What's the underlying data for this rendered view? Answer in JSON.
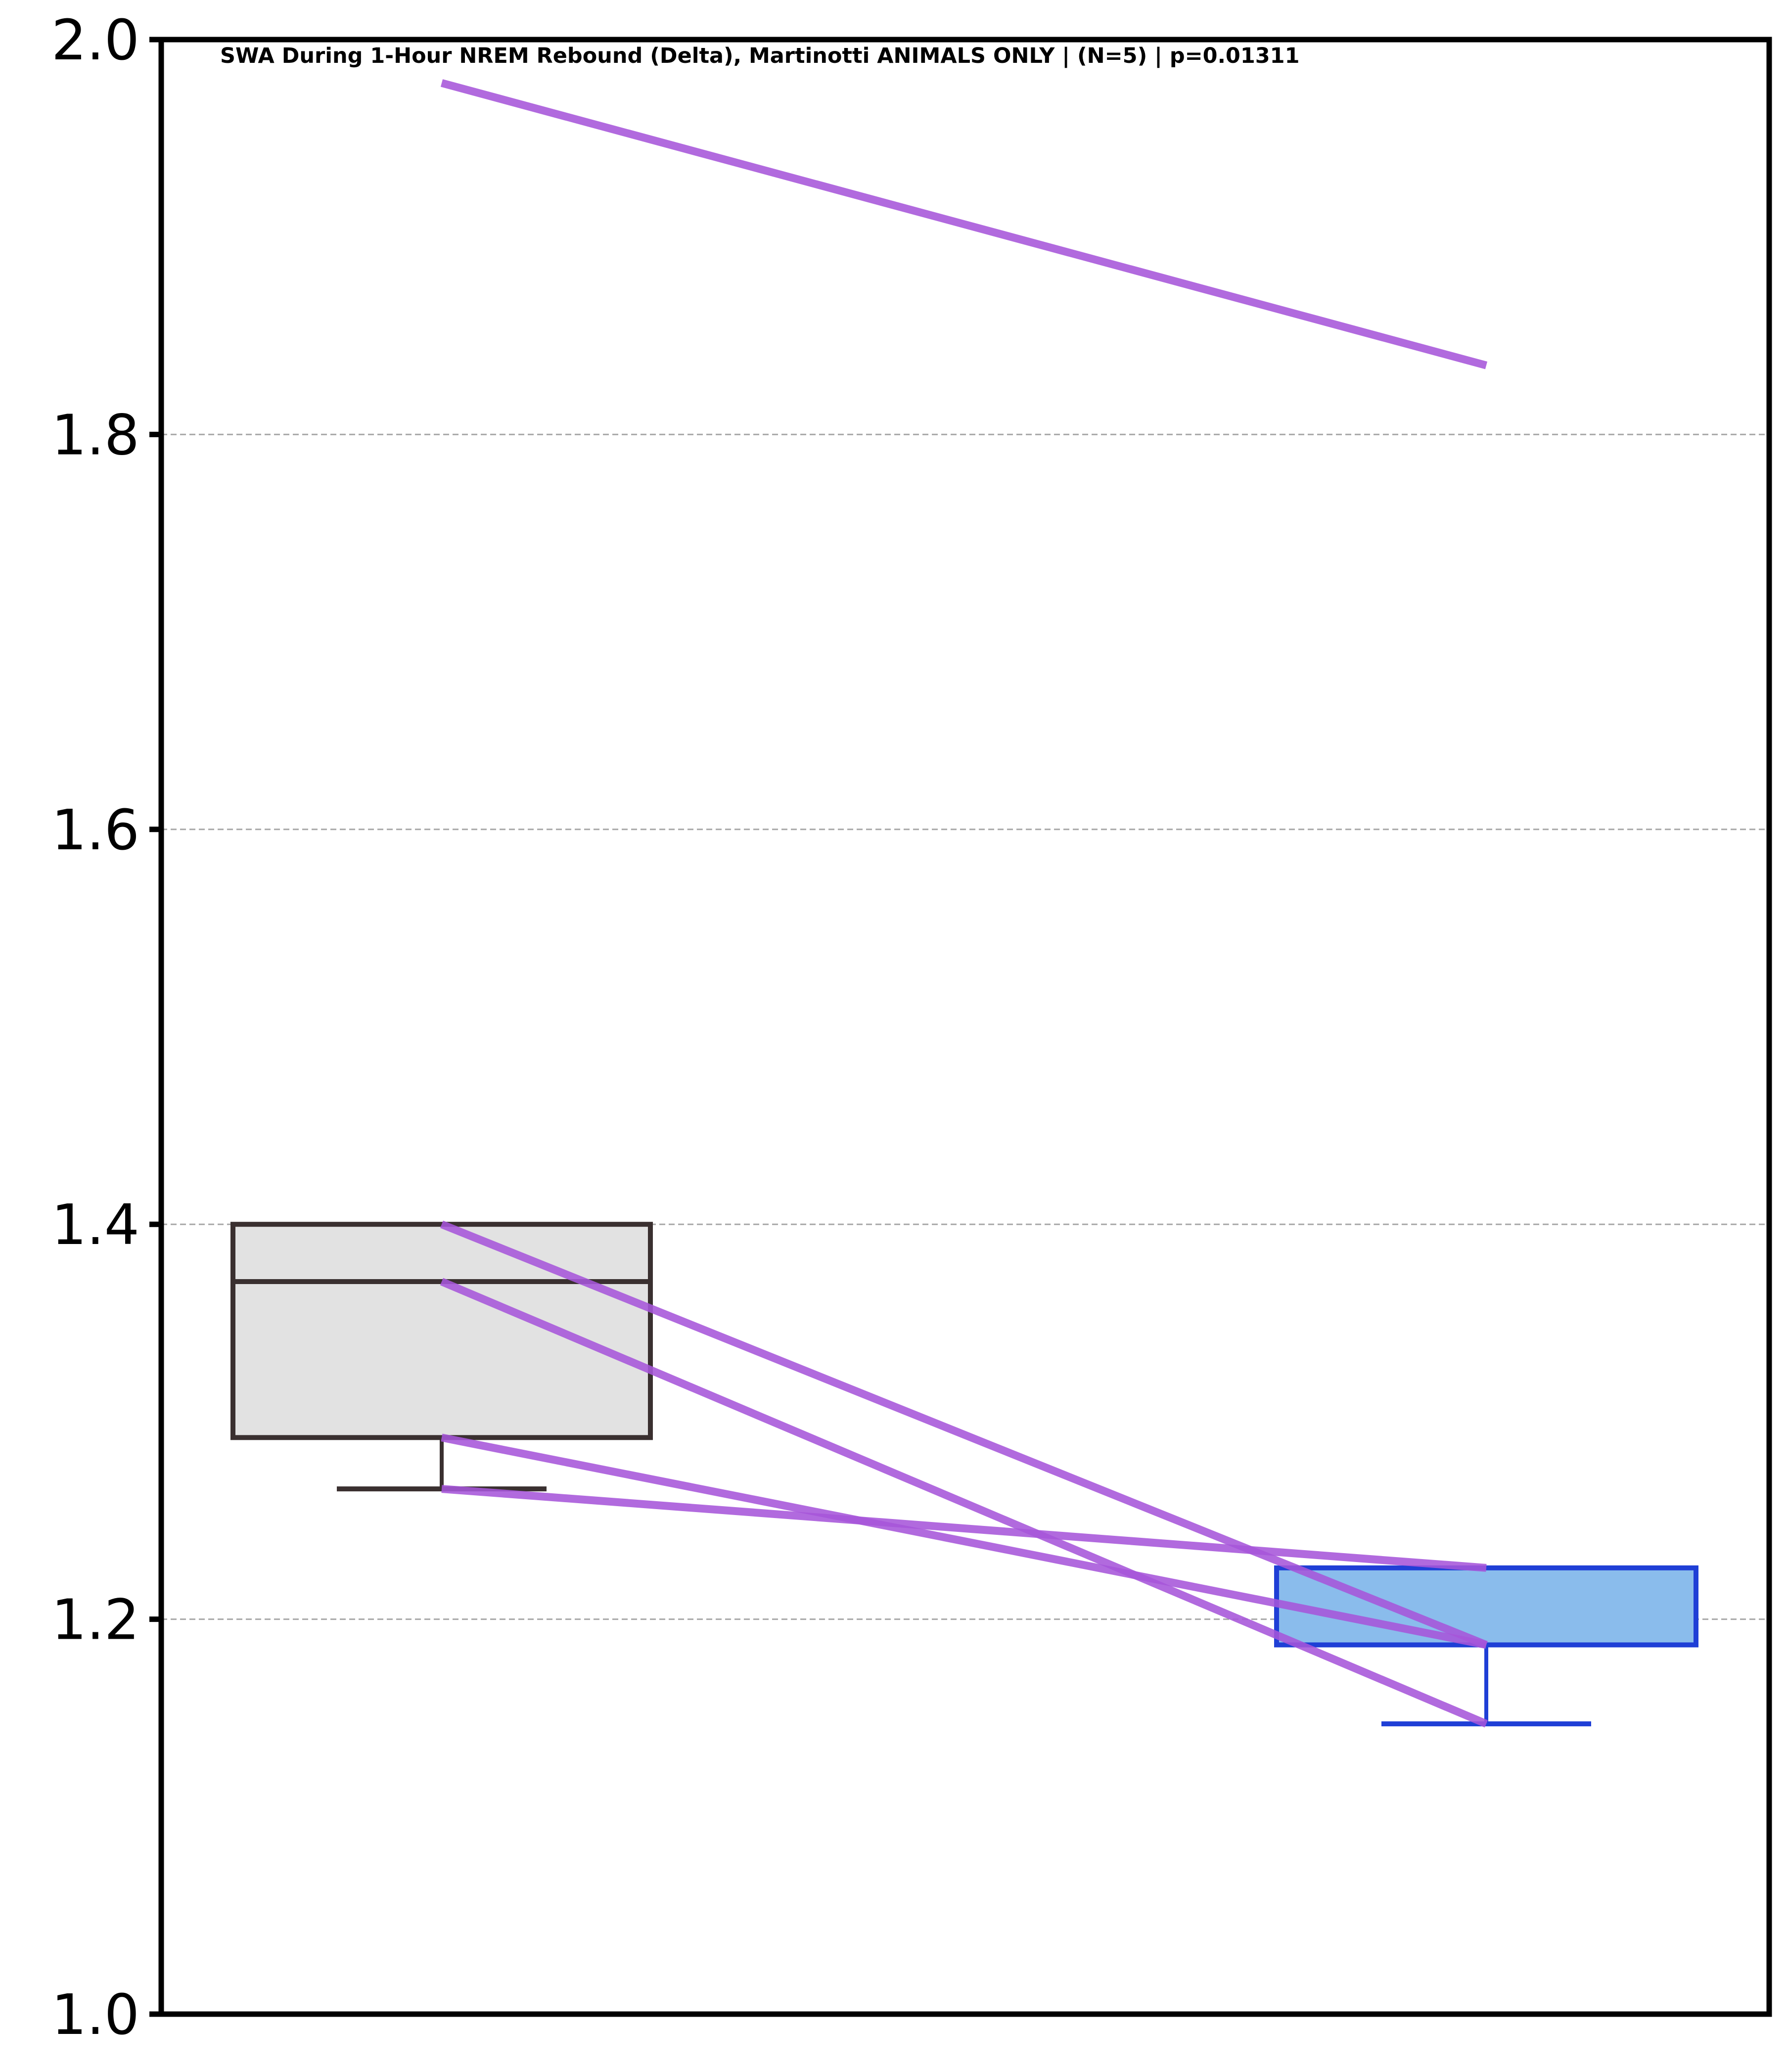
{
  "chart_data": {
    "type": "box",
    "title": "SWA During 1-Hour NREM Rebound (Delta), Martinotti ANIMALS ONLY | (N=5) | p=0.01311",
    "xlabel": "",
    "ylabel": "",
    "ylim": [
      1.0,
      2.0
    ],
    "yticks": [
      "1.0",
      "1.2",
      "1.4",
      "1.6",
      "1.8",
      "2.0"
    ],
    "grid": "horizontal dashed",
    "groups": [
      {
        "q1": 1.292,
        "median": 1.371,
        "q3": 1.4,
        "whisker_low": 1.266,
        "whisker_high": 1.4,
        "outliers": [
          1.978
        ],
        "fill": "#e2e2e2",
        "edge": "#3a3030"
      },
      {
        "q1": 1.187,
        "median": 1.187,
        "q3": 1.226,
        "whisker_low": 1.147,
        "whisker_high": 1.226,
        "outliers": [
          1.835
        ],
        "fill": "#8abcec",
        "edge": "#1f3fd6"
      }
    ],
    "paired_lines": [
      [
        1.978,
        1.835
      ],
      [
        1.4,
        1.187
      ],
      [
        1.371,
        1.147
      ],
      [
        1.292,
        1.187
      ],
      [
        1.266,
        1.226
      ]
    ],
    "line_color": "#a655d9"
  }
}
